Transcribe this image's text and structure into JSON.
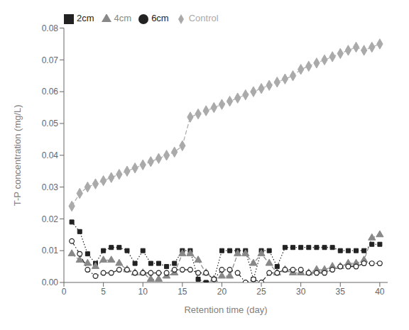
{
  "chart_data": {
    "type": "line",
    "xlabel": "Retention time (day)",
    "ylabel": "T-P concentration (mg/L)",
    "x": [
      1,
      2,
      3,
      4,
      5,
      6,
      7,
      8,
      9,
      10,
      11,
      12,
      13,
      14,
      15,
      16,
      17,
      18,
      19,
      20,
      21,
      22,
      23,
      24,
      25,
      26,
      27,
      28,
      29,
      30,
      31,
      32,
      33,
      34,
      35,
      36,
      37,
      38,
      39,
      40
    ],
    "series": [
      {
        "name": "Control",
        "color": "#aaaaaa",
        "marker": "diamond",
        "line_style": "dashed",
        "values": [
          0.024,
          0.028,
          0.03,
          0.031,
          0.032,
          0.033,
          0.034,
          0.035,
          0.036,
          0.037,
          0.038,
          0.039,
          0.04,
          0.041,
          0.043,
          0.052,
          0.053,
          0.054,
          0.055,
          0.056,
          0.057,
          0.058,
          0.059,
          0.06,
          0.061,
          0.062,
          0.063,
          0.064,
          0.065,
          0.067,
          0.068,
          0.069,
          0.07,
          0.071,
          0.072,
          0.073,
          0.074,
          0.073,
          0.074,
          0.075
        ]
      },
      {
        "name": "2cm",
        "color": "#222222",
        "marker": "square",
        "line_style": "dotted",
        "values": [
          0.019,
          0.016,
          0.009,
          0.006,
          0.01,
          0.011,
          0.011,
          0.01,
          0.006,
          0.01,
          0.006,
          0.006,
          0.005,
          0.006,
          0.01,
          0.01,
          0.001,
          0.0,
          0.001,
          0.01,
          0.01,
          0.01,
          0.01,
          0.001,
          0.01,
          0.01,
          0.005,
          0.011,
          0.011,
          0.011,
          0.011,
          0.011,
          0.011,
          0.011,
          0.01,
          0.01,
          0.01,
          0.01,
          0.012,
          0.012
        ]
      },
      {
        "name": "4cm",
        "color": "#888888",
        "marker": "triangle",
        "line_style": "dashed",
        "values": [
          0.009,
          0.007,
          0.006,
          0.005,
          0.007,
          0.007,
          0.006,
          0.004,
          0.003,
          0.003,
          0.001,
          0.001,
          0.002,
          0.003,
          0.009,
          0.009,
          0.007,
          0.003,
          0.001,
          0.002,
          0.002,
          0.009,
          0.009,
          0.006,
          0.009,
          0.006,
          0.003,
          0.004,
          0.003,
          0.003,
          0.003,
          0.004,
          0.004,
          0.005,
          0.005,
          0.006,
          0.006,
          0.007,
          0.014,
          0.015
        ]
      },
      {
        "name": "6cm",
        "color": "#222222",
        "marker": "circle_open",
        "line_style": "dashdot",
        "values": [
          0.013,
          0.009,
          0.004,
          0.002,
          0.003,
          0.003,
          0.004,
          0.004,
          0.003,
          0.003,
          0.003,
          0.003,
          0.003,
          0.004,
          0.004,
          0.004,
          0.003,
          0.003,
          0.001,
          0.004,
          0.004,
          0.003,
          0.0,
          0.001,
          0.0,
          0.003,
          0.003,
          0.004,
          0.004,
          0.004,
          0.003,
          0.003,
          0.003,
          0.004,
          0.005,
          0.005,
          0.005,
          0.006,
          0.006,
          0.006
        ]
      }
    ],
    "xlim": [
      0,
      41
    ],
    "ylim": [
      0,
      0.08
    ],
    "xticks": [
      0,
      5,
      10,
      15,
      20,
      25,
      30,
      35,
      40
    ],
    "yticks": [
      {
        "value": 0,
        "label": "0.00"
      },
      {
        "value": 0.01,
        "label": "0.01"
      },
      {
        "value": 0.02,
        "label": "0.02"
      },
      {
        "value": 0.03,
        "label": "0.03"
      },
      {
        "value": 0.04,
        "label": "0.04"
      },
      {
        "value": 0.05,
        "label": "0.05"
      },
      {
        "value": 0.06,
        "label": "0.06"
      },
      {
        "value": 0.07,
        "label": "0.07"
      },
      {
        "value": 0.08,
        "label": "0.08"
      }
    ],
    "grid": false,
    "legend": "upper left"
  }
}
